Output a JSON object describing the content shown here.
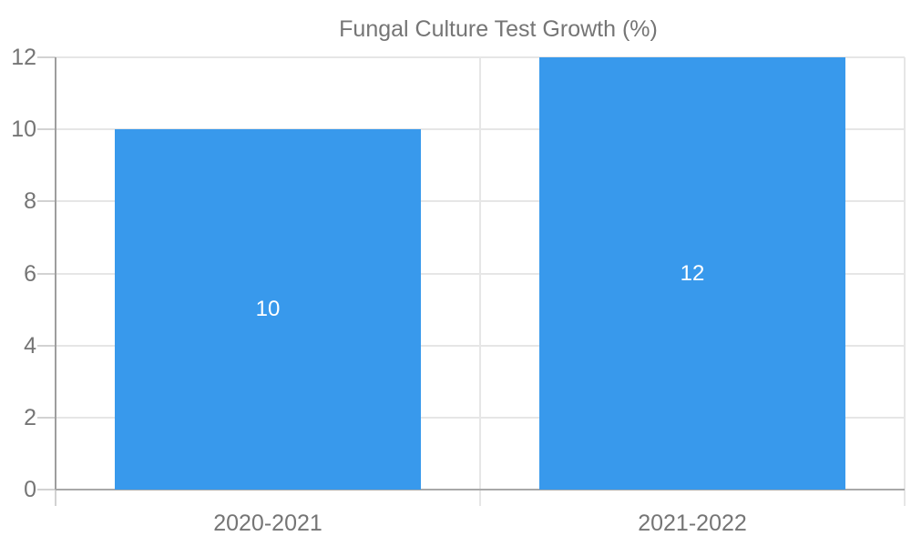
{
  "chart_data": {
    "type": "bar",
    "title": "",
    "xlabel": "",
    "ylabel": "",
    "categories": [
      "2020-2021",
      "2021-2022"
    ],
    "series": [
      {
        "name": "Fungal Culture Test Growth (%)",
        "values": [
          10,
          12
        ]
      }
    ],
    "bar_labels": [
      "10",
      "12"
    ],
    "yticks": [
      0,
      2,
      4,
      6,
      8,
      10,
      12
    ],
    "ylim": [
      0,
      12
    ],
    "grid": true,
    "legend_position": "top-center",
    "colors": {
      "bar": "#3899EC",
      "grid_line": "#e6e6e6",
      "tick_line": "#d2d2d2",
      "axis_line": "#9e9e9e",
      "baseline": "#a8a8a8",
      "text": "#757575",
      "bar_label_text": "#ffffff"
    }
  }
}
